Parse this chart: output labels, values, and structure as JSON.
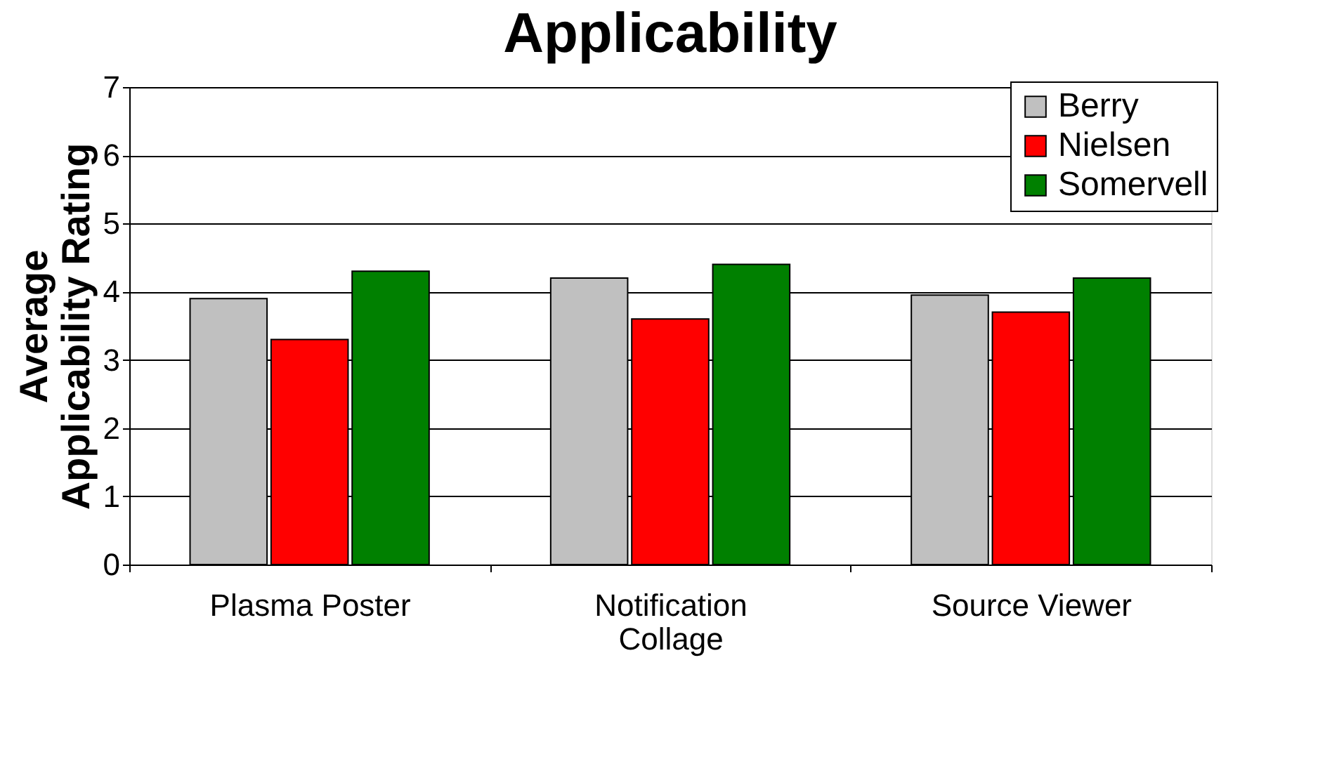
{
  "chart_data": {
    "type": "bar",
    "title": "Applicability",
    "ylabel": "Average Applicability Rating",
    "categories": [
      "Plasma Poster",
      "Notification Collage",
      "Source Viewer"
    ],
    "series": [
      {
        "name": "Berry",
        "color": "#c0c0c0",
        "values": [
          3.9,
          4.2,
          3.95
        ]
      },
      {
        "name": "Nielsen",
        "color": "#ff0000",
        "values": [
          3.3,
          3.6,
          3.7
        ]
      },
      {
        "name": "Somervell",
        "color": "#008000",
        "values": [
          4.3,
          4.4,
          4.2
        ]
      }
    ],
    "ylim": [
      0,
      7
    ],
    "yticks": [
      0,
      1,
      2,
      3,
      4,
      5,
      6,
      7
    ],
    "grid": "y",
    "legend": "top right"
  }
}
